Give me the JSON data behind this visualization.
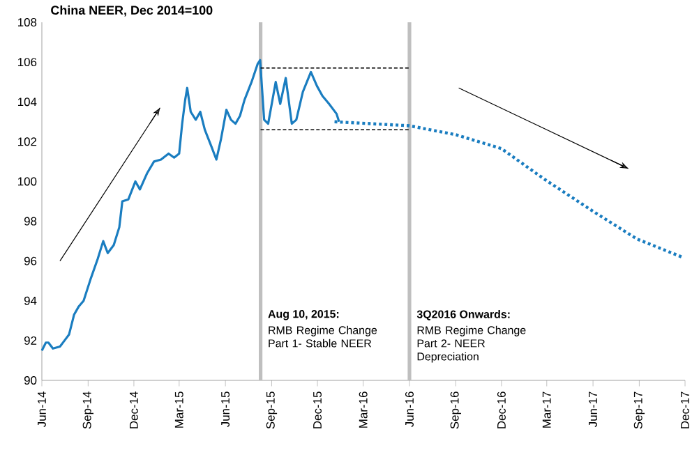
{
  "chart_data": {
    "type": "line",
    "title": "China NEER, Dec 2014=100",
    "xlim": [
      "2014-06-01",
      "2017-12-01"
    ],
    "xticks": [
      {
        "value": "2014-06",
        "label": "Jun-14"
      },
      {
        "value": "2014-09",
        "label": "Sep-14"
      },
      {
        "value": "2014-12",
        "label": "Dec-14"
      },
      {
        "value": "2015-03",
        "label": "Mar-15"
      },
      {
        "value": "2015-06",
        "label": "Jun-15"
      },
      {
        "value": "2015-09",
        "label": "Sep-15"
      },
      {
        "value": "2015-12",
        "label": "Dec-15"
      },
      {
        "value": "2016-03",
        "label": "Mar-16"
      },
      {
        "value": "2016-06",
        "label": "Jun-16"
      },
      {
        "value": "2016-09",
        "label": "Sep-16"
      },
      {
        "value": "2016-12",
        "label": "Dec-16"
      },
      {
        "value": "2017-03",
        "label": "Mar-17"
      },
      {
        "value": "2017-06",
        "label": "Jun-17"
      },
      {
        "value": "2017-09",
        "label": "Sep-17"
      },
      {
        "value": "2017-12",
        "label": "Dec-17"
      }
    ],
    "ylim": [
      90,
      108
    ],
    "yticks": [
      90,
      92,
      94,
      96,
      98,
      100,
      102,
      104,
      106,
      108
    ],
    "series": [
      {
        "color": "#1a7dc0",
        "line_style": "solid",
        "x": [
          "2014-06-01",
          "2014-06-09",
          "2014-06-14",
          "2014-06-23",
          "2014-07-07",
          "2014-07-16",
          "2014-07-25",
          "2014-08-04",
          "2014-08-13",
          "2014-08-23",
          "2014-09-06",
          "2014-09-20",
          "2014-10-01",
          "2014-10-10",
          "2014-10-22",
          "2014-11-02",
          "2014-11-08",
          "2014-11-20",
          "2014-12-04",
          "2014-12-13",
          "2014-12-27",
          "2015-01-10",
          "2015-01-24",
          "2015-02-08",
          "2015-02-19",
          "2015-03-01",
          "2015-03-07",
          "2015-03-13",
          "2015-03-17",
          "2015-03-24",
          "2015-04-03",
          "2015-04-12",
          "2015-04-21",
          "2015-05-05",
          "2015-05-14",
          "2015-05-23",
          "2015-06-03",
          "2015-06-12",
          "2015-06-21",
          "2015-06-30",
          "2015-07-09",
          "2015-07-23",
          "2015-08-04",
          "2015-08-09",
          "2015-08-17",
          "2015-08-25",
          "2015-09-09",
          "2015-09-18",
          "2015-09-29",
          "2015-10-11",
          "2015-10-20",
          "2015-11-02",
          "2015-11-18",
          "2015-11-30",
          "2015-12-11",
          "2015-12-24",
          "2016-01-08",
          "2016-01-13"
        ],
        "values": [
          91.5,
          91.9,
          91.9,
          91.6,
          91.7,
          92.0,
          92.3,
          93.3,
          93.7,
          94.0,
          95.1,
          96.1,
          97.0,
          96.4,
          96.8,
          97.7,
          99.0,
          99.1,
          100.0,
          99.6,
          100.4,
          101.0,
          101.1,
          101.4,
          101.2,
          101.4,
          102.9,
          104.1,
          104.7,
          103.5,
          103.1,
          103.5,
          102.6,
          101.7,
          101.1,
          102.1,
          103.6,
          103.1,
          102.9,
          103.3,
          104.1,
          105.0,
          105.9,
          106.1,
          103.1,
          102.9,
          105.0,
          103.9,
          105.2,
          102.9,
          103.1,
          104.5,
          105.5,
          104.8,
          104.3,
          103.9,
          103.4,
          103.0
        ]
      },
      {
        "color": "#1a7dc0",
        "line_style": "dotted",
        "x": [
          "2016-01-04",
          "2016-06-01",
          "2016-09-01",
          "2016-12-01",
          "2017-02-25",
          "2017-06-01",
          "2017-08-28",
          "2017-11-25"
        ],
        "values": [
          103.0,
          102.8,
          102.35,
          101.65,
          100.1,
          98.5,
          97.1,
          96.2
        ]
      },
      {
        "color": "#000000",
        "line_style": "dashed",
        "x": [
          "2015-08-10",
          "2016-06-01"
        ],
        "values": [
          105.7,
          105.7
        ]
      },
      {
        "color": "#000000",
        "line_style": "dashed",
        "x": [
          "2015-08-10",
          "2016-06-01"
        ],
        "values": [
          102.6,
          102.6
        ]
      },
      {
        "color": "#000000",
        "line_style": "solid",
        "x": [
          "2014-07-07",
          "2015-01-22"
        ],
        "values": [
          96.0,
          103.7
        ]
      },
      {
        "color": "#000000",
        "line_style": "solid",
        "x": [
          "2016-09-07",
          "2017-08-10"
        ],
        "values": [
          104.7,
          100.65
        ]
      }
    ],
    "ref_lines": [
      {
        "axis": "x",
        "value": "2015-08-10",
        "color": "#bfbfbf"
      },
      {
        "axis": "x",
        "value": "2016-06-01",
        "color": "#bfbfbf"
      }
    ],
    "annotations": [
      "Aug 10, 2015:",
      "RMB Regime Change Part 1- Stable NEER",
      "3Q2016 Onwards:",
      "RMB Regime Change Part 2- NEER Depreciation"
    ]
  }
}
